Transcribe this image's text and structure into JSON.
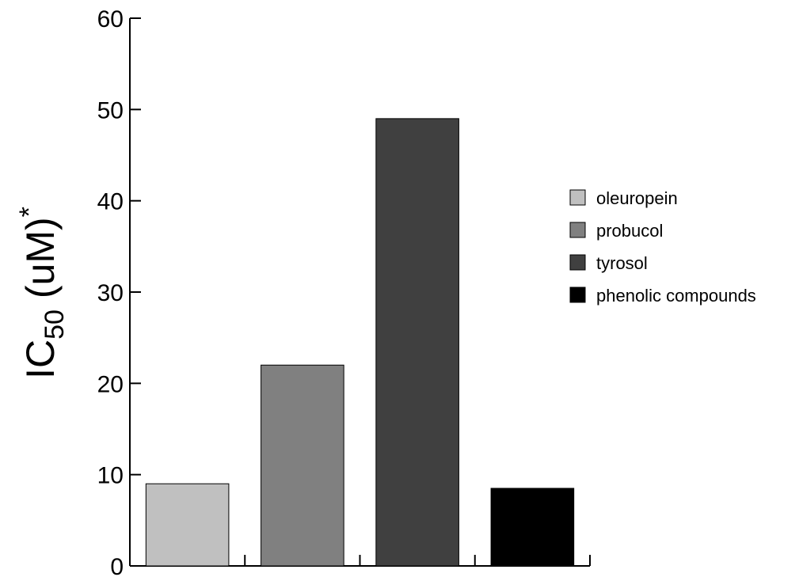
{
  "chart_data": {
    "type": "bar",
    "categories": [
      "oleuropein",
      "probucol",
      "tyrosol",
      "phenolic compounds"
    ],
    "values": [
      9,
      22,
      49,
      8.5
    ],
    "colors": [
      "#c0c0c0",
      "#808080",
      "#404040",
      "#000000"
    ],
    "ylabel": {
      "main": "IC",
      "subscript": "50",
      "suffix": " (uM)",
      "superscript": "*"
    },
    "ylim": [
      0,
      60
    ],
    "yticks": [
      "0",
      "10",
      "20",
      "30",
      "40",
      "50",
      "60"
    ],
    "legend": {
      "position": "right",
      "entries": [
        "oleuropein",
        "probucol",
        "tyrosol",
        "phenolic compounds"
      ]
    },
    "grid": false
  }
}
